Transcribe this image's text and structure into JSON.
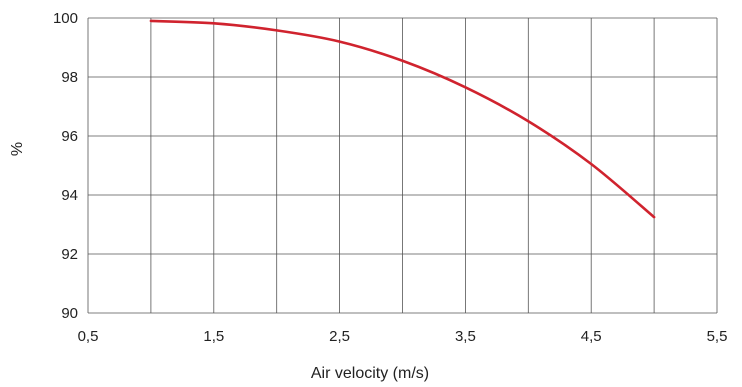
{
  "chart_data": {
    "type": "line",
    "xlabel": "Air velocity (m/s)",
    "ylabel": "%",
    "xlim": [
      0.5,
      5.5
    ],
    "ylim": [
      90,
      100
    ],
    "x_tick_labels": [
      "0,5",
      "1,5",
      "2,5",
      "3,5",
      "4,5",
      "5,5"
    ],
    "y_tick_labels": [
      "100",
      "98",
      "96",
      "94",
      "92",
      "90"
    ],
    "grid": true,
    "series": [
      {
        "color": "#d0232e",
        "x": [
          1.0,
          1.5,
          2.0,
          2.5,
          3.0,
          3.5,
          4.0,
          4.5,
          5.0
        ],
        "y": [
          99.9,
          99.82,
          99.58,
          99.2,
          98.55,
          97.65,
          96.5,
          95.05,
          93.25
        ]
      }
    ]
  }
}
